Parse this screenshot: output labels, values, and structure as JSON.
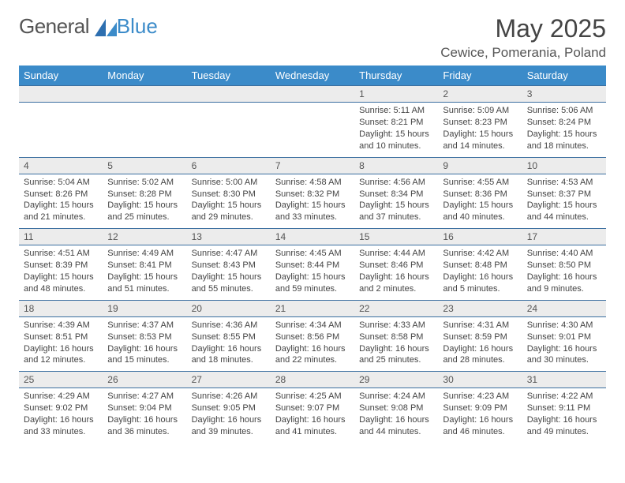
{
  "brand": {
    "name_part1": "General",
    "name_part2": "Blue"
  },
  "logo_colors": {
    "triangle1": "#2d6fb0",
    "triangle2": "#3b8bc9"
  },
  "title": "May 2025",
  "location": "Cewice, Pomerania, Poland",
  "colors": {
    "header_bg": "#3b8bc9",
    "header_text": "#ffffff",
    "daynum_bg": "#ececec",
    "row_divider": "#3b6fa0",
    "body_text": "#444444"
  },
  "typography": {
    "title_fontsize": 32,
    "location_fontsize": 17,
    "dayheader_fontsize": 13,
    "cell_fontsize": 11
  },
  "day_headers": [
    "Sunday",
    "Monday",
    "Tuesday",
    "Wednesday",
    "Thursday",
    "Friday",
    "Saturday"
  ],
  "weeks": [
    [
      null,
      null,
      null,
      null,
      {
        "n": "1",
        "sr": "Sunrise: 5:11 AM",
        "ss": "Sunset: 8:21 PM",
        "d1": "Daylight: 15 hours",
        "d2": "and 10 minutes."
      },
      {
        "n": "2",
        "sr": "Sunrise: 5:09 AM",
        "ss": "Sunset: 8:23 PM",
        "d1": "Daylight: 15 hours",
        "d2": "and 14 minutes."
      },
      {
        "n": "3",
        "sr": "Sunrise: 5:06 AM",
        "ss": "Sunset: 8:24 PM",
        "d1": "Daylight: 15 hours",
        "d2": "and 18 minutes."
      }
    ],
    [
      {
        "n": "4",
        "sr": "Sunrise: 5:04 AM",
        "ss": "Sunset: 8:26 PM",
        "d1": "Daylight: 15 hours",
        "d2": "and 21 minutes."
      },
      {
        "n": "5",
        "sr": "Sunrise: 5:02 AM",
        "ss": "Sunset: 8:28 PM",
        "d1": "Daylight: 15 hours",
        "d2": "and 25 minutes."
      },
      {
        "n": "6",
        "sr": "Sunrise: 5:00 AM",
        "ss": "Sunset: 8:30 PM",
        "d1": "Daylight: 15 hours",
        "d2": "and 29 minutes."
      },
      {
        "n": "7",
        "sr": "Sunrise: 4:58 AM",
        "ss": "Sunset: 8:32 PM",
        "d1": "Daylight: 15 hours",
        "d2": "and 33 minutes."
      },
      {
        "n": "8",
        "sr": "Sunrise: 4:56 AM",
        "ss": "Sunset: 8:34 PM",
        "d1": "Daylight: 15 hours",
        "d2": "and 37 minutes."
      },
      {
        "n": "9",
        "sr": "Sunrise: 4:55 AM",
        "ss": "Sunset: 8:36 PM",
        "d1": "Daylight: 15 hours",
        "d2": "and 40 minutes."
      },
      {
        "n": "10",
        "sr": "Sunrise: 4:53 AM",
        "ss": "Sunset: 8:37 PM",
        "d1": "Daylight: 15 hours",
        "d2": "and 44 minutes."
      }
    ],
    [
      {
        "n": "11",
        "sr": "Sunrise: 4:51 AM",
        "ss": "Sunset: 8:39 PM",
        "d1": "Daylight: 15 hours",
        "d2": "and 48 minutes."
      },
      {
        "n": "12",
        "sr": "Sunrise: 4:49 AM",
        "ss": "Sunset: 8:41 PM",
        "d1": "Daylight: 15 hours",
        "d2": "and 51 minutes."
      },
      {
        "n": "13",
        "sr": "Sunrise: 4:47 AM",
        "ss": "Sunset: 8:43 PM",
        "d1": "Daylight: 15 hours",
        "d2": "and 55 minutes."
      },
      {
        "n": "14",
        "sr": "Sunrise: 4:45 AM",
        "ss": "Sunset: 8:44 PM",
        "d1": "Daylight: 15 hours",
        "d2": "and 59 minutes."
      },
      {
        "n": "15",
        "sr": "Sunrise: 4:44 AM",
        "ss": "Sunset: 8:46 PM",
        "d1": "Daylight: 16 hours",
        "d2": "and 2 minutes."
      },
      {
        "n": "16",
        "sr": "Sunrise: 4:42 AM",
        "ss": "Sunset: 8:48 PM",
        "d1": "Daylight: 16 hours",
        "d2": "and 5 minutes."
      },
      {
        "n": "17",
        "sr": "Sunrise: 4:40 AM",
        "ss": "Sunset: 8:50 PM",
        "d1": "Daylight: 16 hours",
        "d2": "and 9 minutes."
      }
    ],
    [
      {
        "n": "18",
        "sr": "Sunrise: 4:39 AM",
        "ss": "Sunset: 8:51 PM",
        "d1": "Daylight: 16 hours",
        "d2": "and 12 minutes."
      },
      {
        "n": "19",
        "sr": "Sunrise: 4:37 AM",
        "ss": "Sunset: 8:53 PM",
        "d1": "Daylight: 16 hours",
        "d2": "and 15 minutes."
      },
      {
        "n": "20",
        "sr": "Sunrise: 4:36 AM",
        "ss": "Sunset: 8:55 PM",
        "d1": "Daylight: 16 hours",
        "d2": "and 18 minutes."
      },
      {
        "n": "21",
        "sr": "Sunrise: 4:34 AM",
        "ss": "Sunset: 8:56 PM",
        "d1": "Daylight: 16 hours",
        "d2": "and 22 minutes."
      },
      {
        "n": "22",
        "sr": "Sunrise: 4:33 AM",
        "ss": "Sunset: 8:58 PM",
        "d1": "Daylight: 16 hours",
        "d2": "and 25 minutes."
      },
      {
        "n": "23",
        "sr": "Sunrise: 4:31 AM",
        "ss": "Sunset: 8:59 PM",
        "d1": "Daylight: 16 hours",
        "d2": "and 28 minutes."
      },
      {
        "n": "24",
        "sr": "Sunrise: 4:30 AM",
        "ss": "Sunset: 9:01 PM",
        "d1": "Daylight: 16 hours",
        "d2": "and 30 minutes."
      }
    ],
    [
      {
        "n": "25",
        "sr": "Sunrise: 4:29 AM",
        "ss": "Sunset: 9:02 PM",
        "d1": "Daylight: 16 hours",
        "d2": "and 33 minutes."
      },
      {
        "n": "26",
        "sr": "Sunrise: 4:27 AM",
        "ss": "Sunset: 9:04 PM",
        "d1": "Daylight: 16 hours",
        "d2": "and 36 minutes."
      },
      {
        "n": "27",
        "sr": "Sunrise: 4:26 AM",
        "ss": "Sunset: 9:05 PM",
        "d1": "Daylight: 16 hours",
        "d2": "and 39 minutes."
      },
      {
        "n": "28",
        "sr": "Sunrise: 4:25 AM",
        "ss": "Sunset: 9:07 PM",
        "d1": "Daylight: 16 hours",
        "d2": "and 41 minutes."
      },
      {
        "n": "29",
        "sr": "Sunrise: 4:24 AM",
        "ss": "Sunset: 9:08 PM",
        "d1": "Daylight: 16 hours",
        "d2": "and 44 minutes."
      },
      {
        "n": "30",
        "sr": "Sunrise: 4:23 AM",
        "ss": "Sunset: 9:09 PM",
        "d1": "Daylight: 16 hours",
        "d2": "and 46 minutes."
      },
      {
        "n": "31",
        "sr": "Sunrise: 4:22 AM",
        "ss": "Sunset: 9:11 PM",
        "d1": "Daylight: 16 hours",
        "d2": "and 49 minutes."
      }
    ]
  ]
}
